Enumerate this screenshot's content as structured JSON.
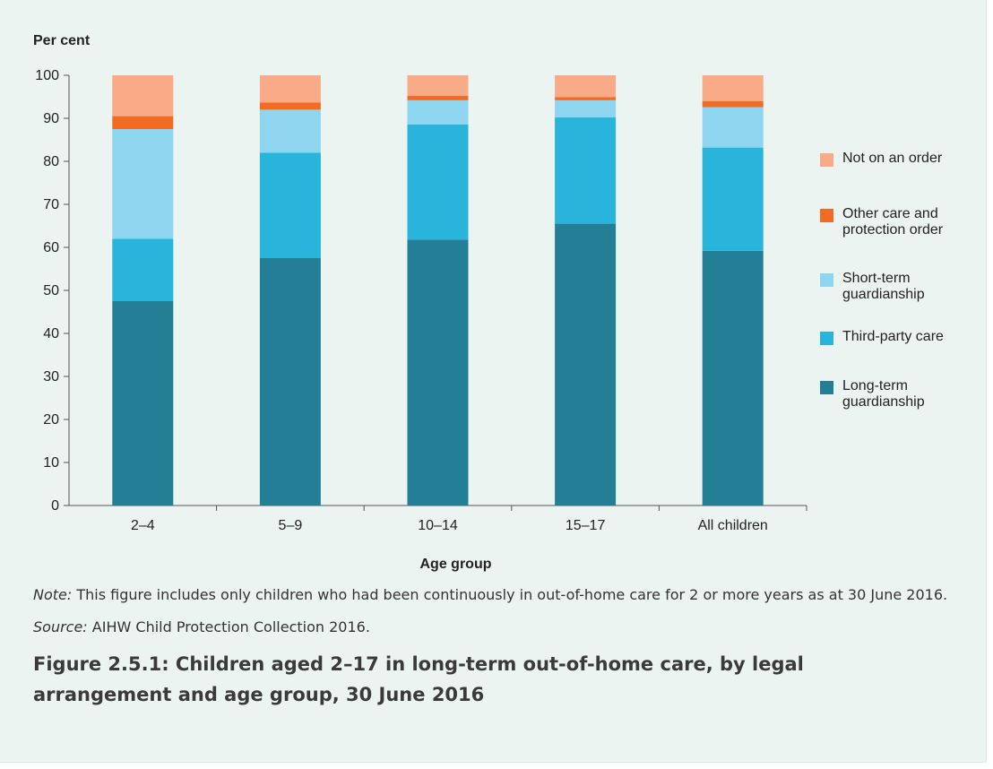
{
  "chart_data": {
    "type": "bar",
    "stacked": true,
    "ylabel": "Per cent",
    "xlabel": "Age group",
    "ylim": [
      0,
      100
    ],
    "yticks": [
      0,
      10,
      20,
      30,
      40,
      50,
      60,
      70,
      80,
      90,
      100
    ],
    "categories": [
      "2–4",
      "5–9",
      "10–14",
      "15–17",
      "All children"
    ],
    "series": [
      {
        "name": "Long-term guardianship",
        "color": "#237f96",
        "values": [
          47.5,
          57.5,
          61.8,
          65.5,
          59.2
        ]
      },
      {
        "name": "Third-party care",
        "color": "#29b4dc",
        "values": [
          14.5,
          24.5,
          26.8,
          24.7,
          24.0
        ]
      },
      {
        "name": "Short-term guardianship",
        "color": "#8ed6ef",
        "values": [
          25.5,
          10.0,
          5.6,
          4.0,
          9.4
        ]
      },
      {
        "name": "Other care and protection order",
        "color": "#f26b22",
        "values": [
          3.0,
          1.7,
          1.0,
          0.7,
          1.4
        ]
      },
      {
        "name": "Not on an order",
        "color": "#f8ab86",
        "values": [
          9.5,
          6.3,
          4.8,
          5.1,
          6.0
        ]
      }
    ],
    "legend_position": "right",
    "grid": false
  },
  "legend": [
    {
      "label": "Not on an order",
      "color": "#f8ab86"
    },
    {
      "label": "Other care and\nprotection order",
      "color": "#f26b22"
    },
    {
      "label": "Short-term\nguardianship",
      "color": "#8ed6ef"
    },
    {
      "label": "Third-party care",
      "color": "#29b4dc"
    },
    {
      "label": "Long-term\nguardianship",
      "color": "#237f96"
    }
  ],
  "notes": {
    "note_label": "Note:",
    "note_text": " This figure includes only children who had been continuously in out-of-home care for 2 or more years as at 30 June 2016.",
    "source_label": "Source:",
    "source_text": " AIHW Child Protection Collection 2016."
  },
  "caption": "Figure 2.5.1: Children aged 2–17 in long-term out-of-home care, by legal arrangement and age group, 30 June 2016"
}
